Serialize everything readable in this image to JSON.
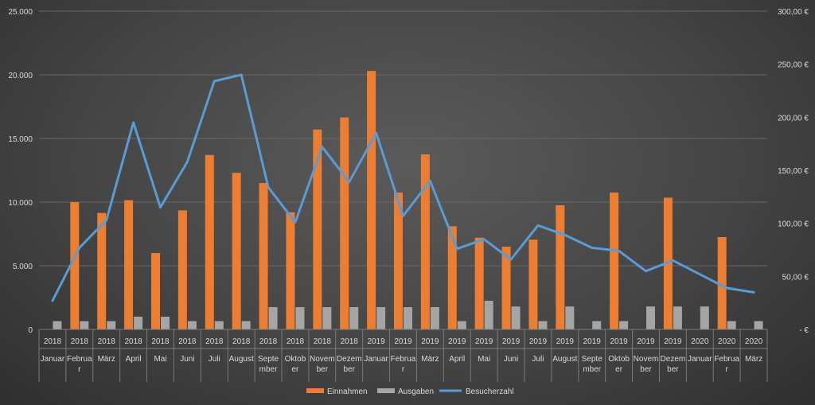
{
  "chart_data": {
    "type": "bar+line",
    "colors": {
      "einnahmen": "#ED7D31",
      "ausgaben": "#A5A5A5",
      "besucherzahl": "#5B9BD5"
    },
    "left_axis": {
      "ylim": [
        0,
        25000
      ],
      "ticks": [
        "0",
        "5.000",
        "10.000",
        "15.000",
        "20.000",
        "25.000"
      ]
    },
    "right_axis": {
      "ylim": [
        0,
        300
      ],
      "ticks": [
        "-   €",
        "50,00 €",
        "100,00 €",
        "150,00 €",
        "200,00 €",
        "250,00 €",
        "300,00 €"
      ]
    },
    "categories": [
      {
        "year": "2018",
        "month": [
          "Januar"
        ]
      },
      {
        "year": "2018",
        "month": [
          "Februa",
          "r"
        ]
      },
      {
        "year": "2018",
        "month": [
          "März"
        ]
      },
      {
        "year": "2018",
        "month": [
          "April"
        ]
      },
      {
        "year": "2018",
        "month": [
          "Mai"
        ]
      },
      {
        "year": "2018",
        "month": [
          "Juni"
        ]
      },
      {
        "year": "2018",
        "month": [
          "Juli"
        ]
      },
      {
        "year": "2018",
        "month": [
          "August"
        ]
      },
      {
        "year": "2018",
        "month": [
          "Septe",
          "mber"
        ]
      },
      {
        "year": "2018",
        "month": [
          "Oktob",
          "er"
        ]
      },
      {
        "year": "2018",
        "month": [
          "Novem",
          "ber"
        ]
      },
      {
        "year": "2018",
        "month": [
          "Dezem",
          "ber"
        ]
      },
      {
        "year": "2019",
        "month": [
          "Januar"
        ]
      },
      {
        "year": "2019",
        "month": [
          "Februa",
          "r"
        ]
      },
      {
        "year": "2019",
        "month": [
          "März"
        ]
      },
      {
        "year": "2019",
        "month": [
          "April"
        ]
      },
      {
        "year": "2019",
        "month": [
          "Mai"
        ]
      },
      {
        "year": "2019",
        "month": [
          "Juni"
        ]
      },
      {
        "year": "2019",
        "month": [
          "Juli"
        ]
      },
      {
        "year": "2019",
        "month": [
          "August"
        ]
      },
      {
        "year": "2019",
        "month": [
          "Septe",
          "mber"
        ]
      },
      {
        "year": "2019",
        "month": [
          "Oktob",
          "er"
        ]
      },
      {
        "year": "2019",
        "month": [
          "Novem",
          "ber"
        ]
      },
      {
        "year": "2019",
        "month": [
          "Dezem",
          "ber"
        ]
      },
      {
        "year": "2020",
        "month": [
          "Januar"
        ]
      },
      {
        "year": "2020",
        "month": [
          "Februa",
          "r"
        ]
      },
      {
        "year": "2020",
        "month": [
          "März"
        ]
      }
    ],
    "series": [
      {
        "name": "Einnahmen",
        "type": "bar",
        "axis": "left",
        "values": [
          0,
          10000,
          9150,
          10150,
          6000,
          9350,
          13700,
          12300,
          11500,
          9200,
          15700,
          16650,
          20300,
          10750,
          13750,
          8100,
          7200,
          6500,
          7050,
          9750,
          0,
          10750,
          0,
          10350,
          0,
          7250,
          0
        ]
      },
      {
        "name": "Ausgaben",
        "type": "bar",
        "axis": "left",
        "values": [
          650,
          650,
          650,
          1000,
          1000,
          650,
          650,
          650,
          1750,
          1750,
          1750,
          1750,
          1750,
          1750,
          1750,
          650,
          2250,
          1800,
          650,
          1800,
          650,
          650,
          1800,
          1800,
          1800,
          650,
          650
        ]
      },
      {
        "name": "Besucherzahl",
        "type": "line",
        "axis": "right",
        "values": [
          27,
          77,
          103,
          195,
          115,
          158,
          234,
          240,
          134,
          101,
          172,
          139,
          185,
          107,
          140,
          76,
          85,
          66,
          98,
          89,
          77,
          74,
          55,
          65,
          52,
          39,
          35
        ]
      }
    ],
    "legend": {
      "position": "bottom",
      "labels": [
        "Einnahmen",
        "Ausgaben",
        "Besucherzahl"
      ]
    }
  }
}
